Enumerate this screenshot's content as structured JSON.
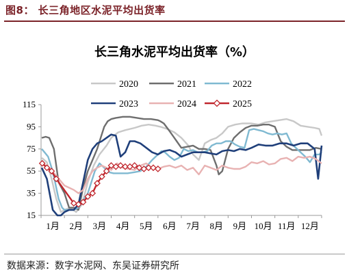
{
  "figure": {
    "caption": "图8： 长三角地区水泥平均出货率",
    "source": "数据来源：数字水泥网、东吴证券研究所"
  },
  "chart_data": {
    "type": "line",
    "title": "长三角水泥平均出货率（%）",
    "xlabel": "",
    "ylabel": "",
    "ylim": [
      15,
      115
    ],
    "yticks": [
      15,
      35,
      55,
      75,
      95,
      115
    ],
    "xlim": [
      0,
      12
    ],
    "x_tick_labels": [
      "1月",
      "2月",
      "3月",
      "4月",
      "5月",
      "6月",
      "7月",
      "8月",
      "9月",
      "10月",
      "11月",
      "12月"
    ],
    "grid": false,
    "legend_position": "top",
    "series": [
      {
        "name": "2020",
        "color": "#c8c8c8",
        "marker": "none",
        "x": [
          0.03,
          0.25,
          0.45,
          0.65,
          0.85,
          1.0,
          1.25,
          1.5,
          1.75,
          2.0,
          2.25,
          2.5,
          2.8,
          3.0,
          3.3,
          3.6,
          4.0,
          4.3,
          4.6,
          4.9,
          5.1,
          5.4,
          5.7,
          6.0,
          6.3,
          6.5,
          6.75,
          7.0,
          7.25,
          7.5,
          7.75,
          8.0,
          8.3,
          8.6,
          9.0,
          9.3,
          9.6,
          9.9,
          10.2,
          10.5,
          10.8,
          11.1,
          11.4,
          11.7,
          11.9,
          12.0
        ],
        "y": [
          67,
          63,
          48,
          30,
          18,
          20,
          22,
          18,
          25,
          45,
          60,
          70,
          78,
          85,
          90,
          92,
          94,
          96,
          97,
          96,
          95,
          93,
          90,
          85,
          78,
          70,
          65,
          80,
          83,
          85,
          89,
          95,
          97,
          98,
          98,
          97,
          99,
          100,
          101,
          102,
          100,
          96,
          95,
          94,
          93,
          87
        ]
      },
      {
        "name": "2021",
        "color": "#6e6e6e",
        "marker": "none",
        "x": [
          0.03,
          0.2,
          0.35,
          0.55,
          0.75,
          1.0,
          1.2,
          1.4,
          1.6,
          1.8,
          2.0,
          2.2,
          2.4,
          2.55,
          2.7,
          2.85,
          3.0,
          3.2,
          3.5,
          3.8,
          4.1,
          4.4,
          4.7,
          5.0,
          5.1,
          5.25,
          5.5,
          5.8,
          6.0,
          6.25,
          6.5,
          6.75,
          7.0,
          7.25,
          7.5,
          7.6,
          7.75,
          8.0,
          8.25,
          8.5,
          8.75,
          9.0,
          9.25,
          9.5,
          9.75,
          10.0,
          10.25,
          10.5,
          10.75,
          11.0,
          11.25,
          11.5,
          11.75,
          12.0
        ],
        "y": [
          85,
          86,
          85,
          75,
          45,
          35,
          22,
          22,
          20,
          40,
          55,
          65,
          75,
          85,
          95,
          100,
          102,
          103,
          104,
          104,
          103,
          102,
          102,
          101,
          100,
          98,
          91,
          82,
          76,
          77,
          78,
          75,
          75,
          74,
          60,
          52,
          55,
          75,
          85,
          90,
          94,
          96,
          96,
          97,
          97,
          95,
          82,
          77,
          74,
          74,
          74,
          74,
          76,
          75
        ]
      },
      {
        "name": "2022",
        "color": "#7fb9d1",
        "marker": "none",
        "x": [
          0.03,
          0.15,
          0.3,
          0.45,
          0.6,
          0.75,
          0.9,
          1.0,
          1.2,
          1.4,
          1.6,
          1.8,
          2.0,
          2.15,
          2.3,
          2.5,
          2.7,
          2.9,
          3.1,
          3.4,
          3.7,
          4.0,
          4.25,
          4.5,
          4.75,
          5.0,
          5.15,
          5.3,
          5.5,
          5.7,
          5.9,
          6.1,
          6.3,
          6.5,
          6.7,
          6.9,
          7.1,
          7.3,
          7.5,
          7.7,
          7.9,
          8.1,
          8.3,
          8.5,
          8.7,
          8.9,
          9.1,
          9.3,
          9.5,
          9.7,
          9.9,
          10.1,
          10.3,
          10.5,
          10.7,
          10.9,
          11.1,
          11.3,
          11.5,
          11.7,
          11.9,
          12.0
        ],
        "y": [
          75,
          72,
          68,
          58,
          45,
          30,
          22,
          20,
          20,
          20,
          22,
          28,
          35,
          45,
          55,
          62,
          58,
          54,
          53,
          53,
          53,
          54,
          55,
          59,
          65,
          70,
          73,
          72,
          68,
          65,
          67,
          75,
          73,
          74,
          72,
          72,
          73,
          78,
          80,
          80,
          82,
          82,
          79,
          77,
          76,
          92,
          93,
          92,
          91,
          89,
          88,
          89,
          88,
          89,
          80,
          76,
          72,
          68,
          63,
          70,
          70,
          72
        ]
      },
      {
        "name": "2023",
        "color": "#1f3f7a",
        "marker": "none",
        "x": [
          0.03,
          0.25,
          0.5,
          0.7,
          0.85,
          1.0,
          1.2,
          1.4,
          1.6,
          1.8,
          2.0,
          2.2,
          2.4,
          2.6,
          2.8,
          3.0,
          3.2,
          3.4,
          3.6,
          3.8,
          4.0,
          4.25,
          4.5,
          4.75,
          5.0,
          5.25,
          5.5,
          5.75,
          6.0,
          6.25,
          6.5,
          6.75,
          7.0,
          7.25,
          7.5,
          7.75,
          8.0,
          8.25,
          8.5,
          8.75,
          9.0,
          9.3,
          9.6,
          9.9,
          10.2,
          10.5,
          10.8,
          11.1,
          11.4,
          11.7,
          11.85,
          12.0
        ],
        "y": [
          58,
          48,
          20,
          15,
          15,
          18,
          20,
          20,
          25,
          45,
          65,
          75,
          80,
          82,
          85,
          88,
          87,
          68,
          72,
          82,
          82,
          80,
          76,
          72,
          70,
          73,
          74,
          72,
          68,
          70,
          72,
          72,
          72,
          71,
          70,
          73,
          74,
          73,
          75,
          74,
          76,
          79,
          78,
          78,
          80,
          80,
          78,
          80,
          80,
          75,
          48,
          78
        ]
      },
      {
        "name": "2024",
        "color": "#e8b2b2",
        "marker": "none",
        "x": [
          0.03,
          0.2,
          0.4,
          0.6,
          0.8,
          1.0,
          1.2,
          1.4,
          1.6,
          1.8,
          2.0,
          2.2,
          2.4,
          2.6,
          2.8,
          3.0,
          3.25,
          3.5,
          3.75,
          4.0,
          4.25,
          4.5,
          4.75,
          5.0,
          5.25,
          5.5,
          5.75,
          6.0,
          6.25,
          6.5,
          6.75,
          7.0,
          7.25,
          7.5,
          7.75,
          8.0,
          8.25,
          8.5,
          8.75,
          9.0,
          9.25,
          9.5,
          9.75,
          10.0,
          10.25,
          10.5,
          10.75,
          11.0,
          11.25,
          11.5,
          11.75,
          12.0
        ],
        "y": [
          62,
          60,
          57,
          52,
          47,
          42,
          40,
          38,
          35,
          38,
          48,
          55,
          58,
          60,
          58,
          56,
          62,
          58,
          57,
          56,
          60,
          62,
          58,
          57,
          59,
          60,
          58,
          60,
          56,
          58,
          52,
          60,
          58,
          56,
          60,
          58,
          57,
          57,
          59,
          63,
          62,
          64,
          61,
          62,
          66,
          67,
          64,
          68,
          67,
          68,
          66,
          62
        ]
      },
      {
        "name": "2025",
        "color": "#c0262d",
        "marker": "diamond",
        "x": [
          0.05,
          0.25,
          0.45,
          0.65,
          1.4,
          1.6,
          1.8,
          2.0,
          2.2,
          2.4,
          2.6,
          2.8,
          3.0,
          3.2,
          3.4,
          3.6,
          3.8,
          4.0,
          4.2,
          4.4,
          4.6,
          4.8,
          5.0
        ],
        "y": [
          62,
          58,
          55,
          48,
          26,
          25,
          27,
          32,
          35,
          44,
          50,
          55,
          60,
          59,
          60,
          59,
          59,
          60,
          58,
          57,
          58,
          58,
          57
        ]
      }
    ]
  }
}
